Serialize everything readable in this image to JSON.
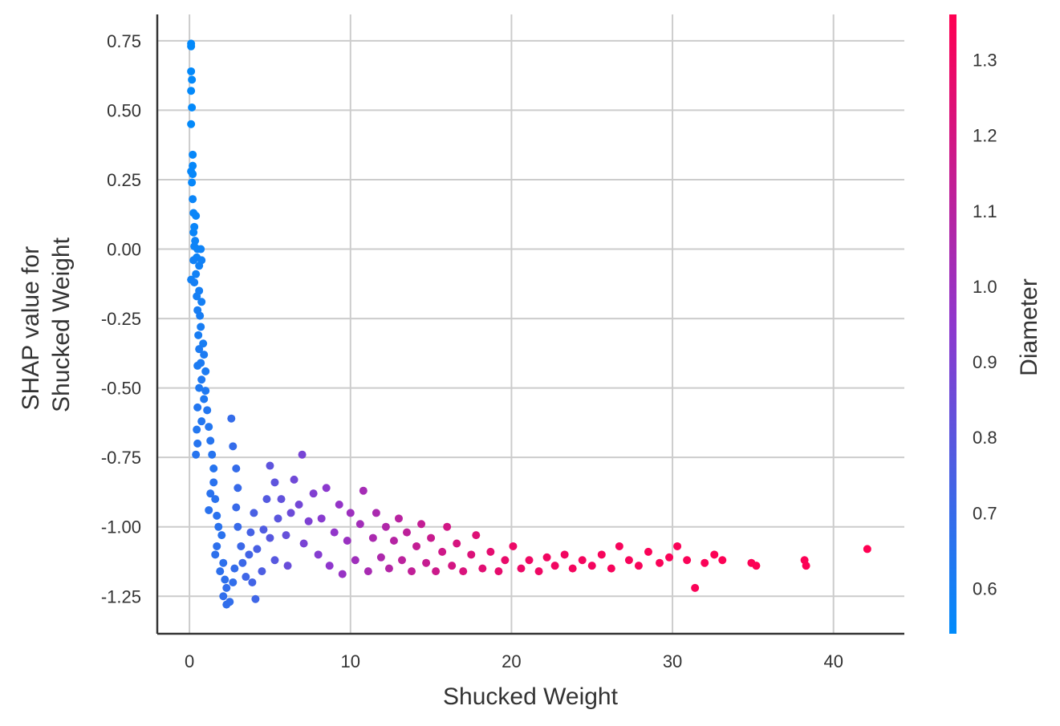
{
  "chart_data": {
    "type": "scatter",
    "title": "",
    "xlabel": "Shucked Weight",
    "ylabel_lines": [
      "SHAP value for",
      "Shucked Weight"
    ],
    "xlim": [
      -2,
      44.4
    ],
    "ylim": [
      -1.385,
      0.845
    ],
    "xticks": [
      0,
      10,
      20,
      30,
      40
    ],
    "xtick_labels": [
      "0",
      "10",
      "20",
      "30",
      "40"
    ],
    "yticks": [
      0.75,
      0.5,
      0.25,
      0.0,
      -0.25,
      -0.5,
      -0.75,
      -1.0,
      -1.25
    ],
    "ytick_labels": [
      "0.75",
      "0.50",
      "0.25",
      "0.00",
      "-0.25",
      "-0.50",
      "-0.75",
      "-1.00",
      "-1.25"
    ],
    "grid": true,
    "colorbar": {
      "label": "Diameter",
      "range": [
        0.54,
        1.36
      ],
      "ticks": [
        0.6,
        0.7,
        0.8,
        0.9,
        1.0,
        1.1,
        1.2,
        1.3
      ],
      "tick_labels": [
        "0.6",
        "0.7",
        "0.8",
        "0.9",
        "1.0",
        "1.1",
        "1.2",
        "1.3"
      ],
      "colors": [
        "#008bfb",
        "#8f37cd",
        "#ff0052"
      ]
    },
    "points": [
      [
        0.1,
        0.74,
        0.55
      ],
      [
        0.1,
        0.73,
        0.55
      ],
      [
        0.1,
        0.64,
        0.55
      ],
      [
        0.15,
        0.61,
        0.55
      ],
      [
        0.1,
        0.57,
        0.55
      ],
      [
        0.15,
        0.51,
        0.55
      ],
      [
        0.1,
        0.45,
        0.55
      ],
      [
        0.2,
        0.34,
        0.56
      ],
      [
        0.2,
        0.3,
        0.56
      ],
      [
        0.1,
        0.28,
        0.56
      ],
      [
        0.2,
        0.27,
        0.56
      ],
      [
        0.15,
        0.24,
        0.56
      ],
      [
        0.2,
        0.18,
        0.57
      ],
      [
        0.25,
        0.13,
        0.57
      ],
      [
        0.4,
        0.12,
        0.57
      ],
      [
        0.3,
        0.08,
        0.57
      ],
      [
        0.25,
        0.06,
        0.57
      ],
      [
        0.35,
        0.03,
        0.58
      ],
      [
        0.3,
        0.01,
        0.58
      ],
      [
        0.5,
        0.0,
        0.58
      ],
      [
        0.7,
        0.0,
        0.58
      ],
      [
        0.45,
        -0.03,
        0.58
      ],
      [
        0.75,
        -0.04,
        0.59
      ],
      [
        0.25,
        -0.04,
        0.59
      ],
      [
        0.6,
        -0.06,
        0.59
      ],
      [
        0.1,
        -0.11,
        0.59
      ],
      [
        0.4,
        -0.09,
        0.59
      ],
      [
        0.3,
        -0.12,
        0.6
      ],
      [
        0.6,
        -0.15,
        0.6
      ],
      [
        0.45,
        -0.17,
        0.6
      ],
      [
        0.75,
        -0.19,
        0.6
      ],
      [
        0.5,
        -0.22,
        0.61
      ],
      [
        0.65,
        -0.24,
        0.61
      ],
      [
        0.7,
        -0.28,
        0.61
      ],
      [
        0.55,
        -0.31,
        0.61
      ],
      [
        0.85,
        -0.34,
        0.61
      ],
      [
        0.6,
        -0.36,
        0.62
      ],
      [
        0.9,
        -0.38,
        0.62
      ],
      [
        0.7,
        -0.41,
        0.62
      ],
      [
        0.5,
        -0.42,
        0.62
      ],
      [
        1.0,
        -0.44,
        0.62
      ],
      [
        0.75,
        -0.47,
        0.63
      ],
      [
        0.6,
        -0.5,
        0.63
      ],
      [
        1.0,
        -0.51,
        0.63
      ],
      [
        0.9,
        -0.54,
        0.63
      ],
      [
        0.5,
        -0.57,
        0.64
      ],
      [
        1.1,
        -0.58,
        0.64
      ],
      [
        0.75,
        -0.62,
        0.64
      ],
      [
        0.45,
        -0.65,
        0.64
      ],
      [
        1.2,
        -0.64,
        0.64
      ],
      [
        0.5,
        -0.7,
        0.65
      ],
      [
        0.4,
        -0.74,
        0.65
      ],
      [
        1.3,
        -0.69,
        0.65
      ],
      [
        1.4,
        -0.74,
        0.65
      ],
      [
        1.5,
        -0.79,
        0.65
      ],
      [
        1.5,
        -0.84,
        0.66
      ],
      [
        1.3,
        -0.88,
        0.66
      ],
      [
        1.6,
        -0.9,
        0.66
      ],
      [
        1.2,
        -0.94,
        0.66
      ],
      [
        1.7,
        -0.96,
        0.66
      ],
      [
        1.8,
        -1.0,
        0.66
      ],
      [
        2.0,
        -1.03,
        0.66
      ],
      [
        1.7,
        -1.07,
        0.67
      ],
      [
        1.6,
        -1.1,
        0.67
      ],
      [
        2.1,
        -1.13,
        0.67
      ],
      [
        1.9,
        -1.16,
        0.67
      ],
      [
        2.2,
        -1.19,
        0.67
      ],
      [
        2.3,
        -1.22,
        0.68
      ],
      [
        2.1,
        -1.25,
        0.68
      ],
      [
        2.3,
        -1.28,
        0.68
      ],
      [
        2.5,
        -1.27,
        0.68
      ],
      [
        2.7,
        -1.2,
        0.68
      ],
      [
        2.8,
        -1.15,
        0.69
      ],
      [
        2.6,
        -0.61,
        0.69
      ],
      [
        2.7,
        -0.71,
        0.69
      ],
      [
        2.9,
        -0.79,
        0.69
      ],
      [
        3.0,
        -0.86,
        0.7
      ],
      [
        2.9,
        -0.93,
        0.7
      ],
      [
        3.0,
        -1.0,
        0.7
      ],
      [
        3.2,
        -1.07,
        0.71
      ],
      [
        3.3,
        -1.13,
        0.71
      ],
      [
        3.5,
        -1.18,
        0.72
      ],
      [
        4.1,
        -1.26,
        0.72
      ],
      [
        3.7,
        -1.1,
        0.73
      ],
      [
        3.9,
        -1.2,
        0.73
      ],
      [
        3.8,
        -1.02,
        0.74
      ],
      [
        4.0,
        -0.95,
        0.75
      ],
      [
        4.2,
        -1.08,
        0.75
      ],
      [
        4.5,
        -1.16,
        0.76
      ],
      [
        4.6,
        -1.01,
        0.77
      ],
      [
        4.8,
        -0.9,
        0.78
      ],
      [
        5.0,
        -1.04,
        0.79
      ],
      [
        5.3,
        -1.12,
        0.79
      ],
      [
        5.5,
        -0.97,
        0.8
      ],
      [
        5.0,
        -0.78,
        0.81
      ],
      [
        5.3,
        -0.84,
        0.81
      ],
      [
        5.7,
        -0.9,
        0.82
      ],
      [
        6.0,
        -1.03,
        0.83
      ],
      [
        6.1,
        -1.14,
        0.84
      ],
      [
        6.3,
        -0.95,
        0.85
      ],
      [
        6.5,
        -0.83,
        0.86
      ],
      [
        6.8,
        -0.92,
        0.87
      ],
      [
        7.0,
        -0.74,
        0.88
      ],
      [
        7.1,
        -1.06,
        0.89
      ],
      [
        7.4,
        -0.98,
        0.9
      ],
      [
        7.7,
        -0.88,
        0.91
      ],
      [
        8.0,
        -1.1,
        0.92
      ],
      [
        8.2,
        -0.97,
        0.93
      ],
      [
        8.5,
        -0.86,
        0.94
      ],
      [
        8.7,
        -1.14,
        0.95
      ],
      [
        9.0,
        -1.02,
        0.96
      ],
      [
        9.3,
        -0.92,
        0.97
      ],
      [
        9.5,
        -1.17,
        0.98
      ],
      [
        9.8,
        -1.05,
        0.99
      ],
      [
        10.0,
        -0.95,
        1.0
      ],
      [
        10.3,
        -1.12,
        1.01
      ],
      [
        10.6,
        -0.99,
        1.02
      ],
      [
        10.8,
        -0.87,
        1.03
      ],
      [
        11.1,
        -1.16,
        1.04
      ],
      [
        11.4,
        -1.04,
        1.05
      ],
      [
        11.6,
        -0.95,
        1.05
      ],
      [
        11.9,
        -1.11,
        1.06
      ],
      [
        12.2,
        -1.0,
        1.07
      ],
      [
        12.4,
        -1.15,
        1.08
      ],
      [
        12.7,
        -1.05,
        1.09
      ],
      [
        13.0,
        -0.97,
        1.1
      ],
      [
        13.2,
        -1.12,
        1.11
      ],
      [
        13.5,
        -1.02,
        1.12
      ],
      [
        13.8,
        -1.16,
        1.13
      ],
      [
        14.1,
        -1.07,
        1.14
      ],
      [
        14.4,
        -0.99,
        1.14
      ],
      [
        14.7,
        -1.13,
        1.15
      ],
      [
        15.0,
        -1.04,
        1.16
      ],
      [
        15.3,
        -1.16,
        1.17
      ],
      [
        15.7,
        -1.09,
        1.18
      ],
      [
        16.0,
        -1.0,
        1.19
      ],
      [
        16.3,
        -1.14,
        1.2
      ],
      [
        16.6,
        -1.06,
        1.21
      ],
      [
        17.0,
        -1.16,
        1.22
      ],
      [
        17.5,
        -1.1,
        1.23
      ],
      [
        17.8,
        -1.03,
        1.24
      ],
      [
        18.2,
        -1.15,
        1.25
      ],
      [
        18.7,
        -1.09,
        1.26
      ],
      [
        19.2,
        -1.16,
        1.27
      ],
      [
        19.6,
        -1.12,
        1.28
      ],
      [
        20.1,
        -1.07,
        1.29
      ],
      [
        20.6,
        -1.15,
        1.29
      ],
      [
        21.1,
        -1.12,
        1.3
      ],
      [
        21.7,
        -1.16,
        1.3
      ],
      [
        22.2,
        -1.11,
        1.31
      ],
      [
        22.7,
        -1.14,
        1.31
      ],
      [
        23.3,
        -1.1,
        1.31
      ],
      [
        23.8,
        -1.15,
        1.32
      ],
      [
        24.4,
        -1.12,
        1.32
      ],
      [
        25.0,
        -1.14,
        1.32
      ],
      [
        25.6,
        -1.1,
        1.33
      ],
      [
        26.2,
        -1.15,
        1.33
      ],
      [
        26.7,
        -1.07,
        1.33
      ],
      [
        27.3,
        -1.12,
        1.33
      ],
      [
        27.9,
        -1.14,
        1.33
      ],
      [
        28.5,
        -1.09,
        1.34
      ],
      [
        29.2,
        -1.13,
        1.34
      ],
      [
        29.8,
        -1.11,
        1.34
      ],
      [
        30.3,
        -1.07,
        1.34
      ],
      [
        30.9,
        -1.12,
        1.34
      ],
      [
        31.4,
        -1.22,
        1.34
      ],
      [
        32.0,
        -1.13,
        1.34
      ],
      [
        32.6,
        -1.1,
        1.35
      ],
      [
        33.1,
        -1.12,
        1.35
      ],
      [
        34.9,
        -1.13,
        1.35
      ],
      [
        35.2,
        -1.14,
        1.35
      ],
      [
        38.2,
        -1.12,
        1.35
      ],
      [
        38.3,
        -1.14,
        1.35
      ],
      [
        42.1,
        -1.08,
        1.36
      ]
    ]
  }
}
